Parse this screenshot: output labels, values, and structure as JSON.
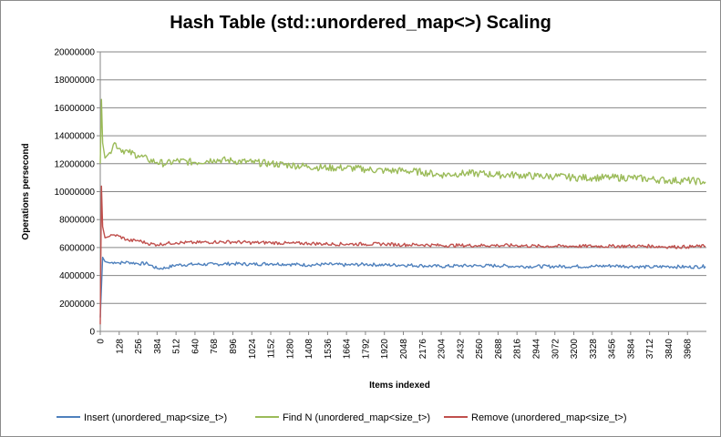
{
  "chart_data": {
    "type": "line",
    "title": "Hash Table (std::unordered_map<>) Scaling",
    "xlabel": "Items indexed",
    "ylabel": "Operations persecond",
    "xlim": [
      0,
      4096
    ],
    "ylim": [
      0,
      20000000
    ],
    "y_ticks": [
      "0",
      "2000000",
      "4000000",
      "6000000",
      "8000000",
      "10000000",
      "12000000",
      "14000000",
      "16000000",
      "18000000",
      "20000000"
    ],
    "x_ticks": [
      "0",
      "128",
      "256",
      "384",
      "512",
      "640",
      "768",
      "896",
      "1024",
      "1152",
      "1280",
      "1408",
      "1536",
      "1664",
      "1792",
      "1920",
      "2048",
      "2176",
      "2304",
      "2432",
      "2560",
      "2688",
      "2816",
      "2944",
      "3072",
      "3200",
      "3328",
      "3456",
      "3584",
      "3712",
      "3840",
      "3968"
    ],
    "grid": "horizontal",
    "legend_position": "bottom",
    "series": [
      {
        "name": "Insert (unordered_map<size_t>)",
        "color": "#4f81bd",
        "x": [
          0,
          16,
          32,
          64,
          96,
          128,
          192,
          256,
          320,
          384,
          448,
          512,
          640,
          768,
          896,
          1024,
          1152,
          1280,
          1408,
          1536,
          1664,
          1792,
          1920,
          2048,
          2176,
          2304,
          2432,
          2560,
          2688,
          2816,
          2944,
          3072,
          3200,
          3328,
          3456,
          3584,
          3712,
          3840,
          3968,
          4090
        ],
        "values": [
          1000000,
          5300000,
          5000000,
          4900000,
          4950000,
          4900000,
          4950000,
          4850000,
          4850000,
          4500000,
          4550000,
          4750000,
          4800000,
          4800000,
          4850000,
          4800000,
          4850000,
          4800000,
          4750000,
          4800000,
          4750000,
          4800000,
          4750000,
          4750000,
          4700000,
          4650000,
          4700000,
          4700000,
          4700000,
          4650000,
          4650000,
          4650000,
          4650000,
          4650000,
          4700000,
          4650000,
          4600000,
          4650000,
          4600000,
          4650000
        ]
      },
      {
        "name": "Find N (unordered_map<size_t>)",
        "color": "#9bbb59",
        "x": [
          0,
          8,
          16,
          32,
          64,
          96,
          128,
          192,
          256,
          320,
          384,
          448,
          512,
          640,
          768,
          896,
          1024,
          1152,
          1280,
          1408,
          1536,
          1664,
          1792,
          1920,
          2048,
          2176,
          2304,
          2432,
          2560,
          2688,
          2816,
          2944,
          3072,
          3200,
          3328,
          3456,
          3584,
          3712,
          3840,
          3968,
          4090
        ],
        "values": [
          12000000,
          16600000,
          13500000,
          12400000,
          12800000,
          13500000,
          13100000,
          12800000,
          12600000,
          12300000,
          12100000,
          12000000,
          12200000,
          12100000,
          12300000,
          12200000,
          12100000,
          12000000,
          11900000,
          11800000,
          11700000,
          11700000,
          11600000,
          11500000,
          11500000,
          11400000,
          11200000,
          11300000,
          11300000,
          11200000,
          11200000,
          11100000,
          11100000,
          11000000,
          11000000,
          11000000,
          11000000,
          10900000,
          10800000,
          10800000,
          10700000
        ]
      },
      {
        "name": "Remove (unordered_map<size_t>)",
        "color": "#c0504d",
        "x": [
          0,
          8,
          16,
          32,
          64,
          96,
          128,
          192,
          256,
          320,
          384,
          448,
          512,
          640,
          768,
          896,
          1024,
          1152,
          1280,
          1408,
          1536,
          1664,
          1792,
          1920,
          2048,
          2176,
          2304,
          2432,
          2560,
          2688,
          2816,
          2944,
          3072,
          3200,
          3328,
          3456,
          3584,
          3712,
          3840,
          3968,
          4090
        ],
        "values": [
          500000,
          10400000,
          7500000,
          6700000,
          6800000,
          6900000,
          6800000,
          6500000,
          6500000,
          6300000,
          6200000,
          6300000,
          6350000,
          6350000,
          6400000,
          6400000,
          6350000,
          6350000,
          6300000,
          6300000,
          6250000,
          6250000,
          6250000,
          6250000,
          6200000,
          6200000,
          6150000,
          6150000,
          6150000,
          6150000,
          6150000,
          6100000,
          6100000,
          6100000,
          6100000,
          6100000,
          6100000,
          6100000,
          6050000,
          6050000,
          6100000
        ]
      }
    ]
  }
}
